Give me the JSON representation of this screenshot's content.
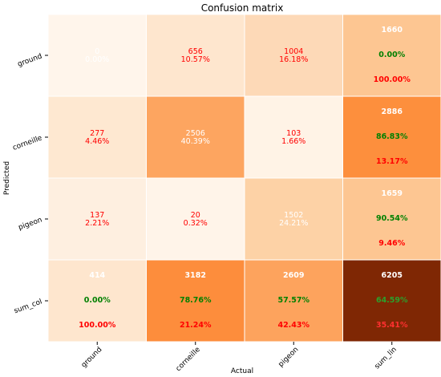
{
  "chart_data": {
    "type": "heatmap",
    "title": "Confusion matrix",
    "xlabel": "Actual",
    "ylabel": "Predicted",
    "x_categories": [
      "ground",
      "corneille",
      "pigeon",
      "sum_lin"
    ],
    "y_categories": [
      "ground",
      "corneille",
      "pigeon",
      "sum_col"
    ],
    "cells": [
      [
        {
          "lines": [
            "0",
            "0.00%"
          ]
        },
        {
          "lines": [
            "656",
            "10.57%"
          ]
        },
        {
          "lines": [
            "1004",
            "16.18%"
          ]
        },
        {
          "lines": [
            "1660",
            "0.00%",
            "100.00%"
          ]
        }
      ],
      [
        {
          "lines": [
            "277",
            "4.46%"
          ]
        },
        {
          "lines": [
            "2506",
            "40.39%"
          ]
        },
        {
          "lines": [
            "103",
            "1.66%"
          ]
        },
        {
          "lines": [
            "2886",
            "86.83%",
            "13.17%"
          ]
        }
      ],
      [
        {
          "lines": [
            "137",
            "2.21%"
          ]
        },
        {
          "lines": [
            "20",
            "0.32%"
          ]
        },
        {
          "lines": [
            "1502",
            "24.21%"
          ]
        },
        {
          "lines": [
            "1659",
            "90.54%",
            "9.46%"
          ]
        }
      ],
      [
        {
          "lines": [
            "414",
            "0.00%",
            "100.00%"
          ]
        },
        {
          "lines": [
            "3182",
            "78.76%",
            "21.24%"
          ]
        },
        {
          "lines": [
            "2609",
            "57.57%",
            "42.43%"
          ]
        },
        {
          "lines": [
            "6205",
            "64.59%",
            "35.41%"
          ]
        }
      ]
    ],
    "cell_colors": [
      [
        "#fff5eb",
        "#fee6ce",
        "#fdd9b7",
        "#fdc692"
      ],
      [
        "#fee8d1",
        "#fda560",
        "#fff3e6",
        "#fd8f3d"
      ],
      [
        "#feefe0",
        "#fff4e9",
        "#fdd2a6",
        "#fdc692"
      ],
      [
        "#fee6ce",
        "#fd8d3c",
        "#fda35d",
        "#7f2704"
      ]
    ],
    "colors": {
      "count_text": "#ffffff",
      "percent_text": "#ff0000",
      "good_text": "#008000",
      "bad_text": "#ff0000"
    }
  }
}
